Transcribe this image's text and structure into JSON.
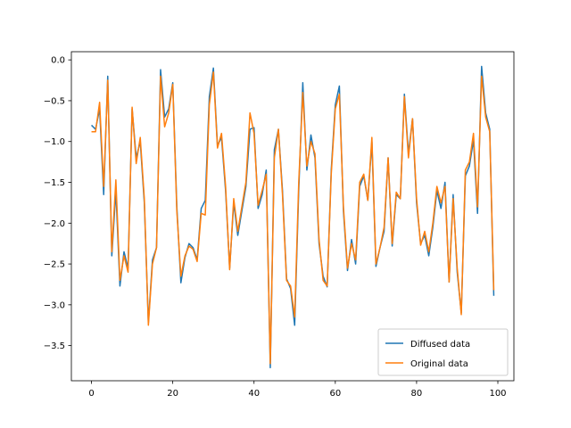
{
  "chart_data": {
    "type": "line",
    "title": "",
    "xlabel": "",
    "ylabel": "",
    "xlim": [
      -4.95,
      103.95
    ],
    "ylim": [
      -3.93,
      0.1
    ],
    "x_ticks": [
      0,
      20,
      40,
      60,
      80,
      100
    ],
    "x_tick_labels": [
      "0",
      "20",
      "40",
      "60",
      "80",
      "100"
    ],
    "y_ticks": [
      0.0,
      -0.5,
      -1.0,
      -1.5,
      -2.0,
      -2.5,
      -3.0,
      -3.5
    ],
    "y_tick_labels": [
      "0.0",
      "−0.5",
      "−1.0",
      "−1.5",
      "−2.0",
      "−2.5",
      "−3.0",
      "−3.5"
    ],
    "grid": false,
    "legend_position": "lower right",
    "colors": {
      "diffused": "#1f77b4",
      "original": "#ff7f0e"
    },
    "series": [
      {
        "name": "Diffused data",
        "color": "#1f77b4",
        "x": [
          0,
          1,
          2,
          3,
          4,
          5,
          6,
          7,
          8,
          9,
          10,
          11,
          12,
          13,
          14,
          15,
          16,
          17,
          18,
          19,
          20,
          21,
          22,
          23,
          24,
          25,
          26,
          27,
          28,
          29,
          30,
          31,
          32,
          33,
          34,
          35,
          36,
          37,
          38,
          39,
          40,
          41,
          42,
          43,
          44,
          45,
          46,
          47,
          48,
          49,
          50,
          51,
          52,
          53,
          54,
          55,
          56,
          57,
          58,
          59,
          60,
          61,
          62,
          63,
          64,
          65,
          66,
          67,
          68,
          69,
          70,
          71,
          72,
          73,
          74,
          75,
          76,
          77,
          78,
          79,
          80,
          81,
          82,
          83,
          84,
          85,
          86,
          87,
          88,
          89,
          90,
          91,
          92,
          93,
          94,
          95,
          96,
          97,
          98,
          99
        ],
        "values": [
          -0.8,
          -0.85,
          -0.6,
          -1.65,
          -0.2,
          -2.4,
          -1.6,
          -2.77,
          -2.35,
          -2.55,
          -0.6,
          -1.2,
          -1.0,
          -1.75,
          -3.22,
          -2.45,
          -2.3,
          -0.12,
          -0.7,
          -0.6,
          -0.28,
          -1.8,
          -2.73,
          -2.42,
          -2.25,
          -2.3,
          -2.45,
          -1.82,
          -1.72,
          -0.45,
          -0.1,
          -1.05,
          -0.95,
          -1.6,
          -2.55,
          -1.75,
          -2.15,
          -1.85,
          -1.55,
          -0.85,
          -0.83,
          -1.82,
          -1.65,
          -1.35,
          -3.77,
          -1.1,
          -0.85,
          -1.6,
          -2.68,
          -2.8,
          -3.25,
          -1.6,
          -0.28,
          -1.35,
          -0.92,
          -1.2,
          -2.25,
          -2.65,
          -2.78,
          -1.35,
          -0.55,
          -0.32,
          -1.85,
          -2.58,
          -2.2,
          -2.5,
          -1.55,
          -1.42,
          -1.72,
          -1.0,
          -2.53,
          -2.3,
          -2.1,
          -1.2,
          -2.28,
          -1.65,
          -1.7,
          -0.42,
          -1.15,
          -0.72,
          -1.75,
          -2.25,
          -2.15,
          -2.4,
          -2.05,
          -1.6,
          -1.82,
          -1.5,
          -2.72,
          -1.65,
          -2.6,
          -3.1,
          -1.42,
          -1.3,
          -0.98,
          -1.88,
          -0.08,
          -0.65,
          -0.85,
          -2.89
        ]
      },
      {
        "name": "Original data",
        "color": "#ff7f0e",
        "x": [
          0,
          1,
          2,
          3,
          4,
          5,
          6,
          7,
          8,
          9,
          10,
          11,
          12,
          13,
          14,
          15,
          16,
          17,
          18,
          19,
          20,
          21,
          22,
          23,
          24,
          25,
          26,
          27,
          28,
          29,
          30,
          31,
          32,
          33,
          34,
          35,
          36,
          37,
          38,
          39,
          40,
          41,
          42,
          43,
          44,
          45,
          46,
          47,
          48,
          49,
          50,
          51,
          52,
          53,
          54,
          55,
          56,
          57,
          58,
          59,
          60,
          61,
          62,
          63,
          64,
          65,
          66,
          67,
          68,
          69,
          70,
          71,
          72,
          73,
          74,
          75,
          76,
          77,
          78,
          79,
          80,
          81,
          82,
          83,
          84,
          85,
          86,
          87,
          88,
          89,
          90,
          91,
          92,
          93,
          94,
          95,
          96,
          97,
          98,
          99
        ],
        "values": [
          -0.88,
          -0.88,
          -0.52,
          -1.55,
          -0.25,
          -2.35,
          -1.47,
          -2.7,
          -2.4,
          -2.6,
          -0.58,
          -1.27,
          -0.95,
          -1.7,
          -3.25,
          -2.5,
          -2.3,
          -0.2,
          -0.82,
          -0.65,
          -0.3,
          -1.85,
          -2.65,
          -2.4,
          -2.28,
          -2.32,
          -2.47,
          -1.88,
          -1.9,
          -0.55,
          -0.15,
          -1.08,
          -0.9,
          -1.55,
          -2.57,
          -1.7,
          -2.1,
          -1.8,
          -1.5,
          -0.65,
          -0.9,
          -1.78,
          -1.6,
          -1.4,
          -3.72,
          -1.2,
          -0.85,
          -1.65,
          -2.7,
          -2.77,
          -3.15,
          -1.5,
          -0.4,
          -1.3,
          -1.0,
          -1.15,
          -2.2,
          -2.7,
          -2.77,
          -1.4,
          -0.6,
          -0.42,
          -1.8,
          -2.55,
          -2.25,
          -2.45,
          -1.5,
          -1.4,
          -1.72,
          -0.95,
          -2.5,
          -2.3,
          -2.05,
          -1.2,
          -2.25,
          -1.62,
          -1.7,
          -0.45,
          -1.2,
          -0.72,
          -1.7,
          -2.27,
          -2.1,
          -2.35,
          -2.0,
          -1.55,
          -1.75,
          -1.55,
          -2.72,
          -1.7,
          -2.55,
          -3.12,
          -1.35,
          -1.25,
          -0.9,
          -1.8,
          -0.2,
          -0.7,
          -0.88,
          -2.82
        ]
      }
    ]
  }
}
